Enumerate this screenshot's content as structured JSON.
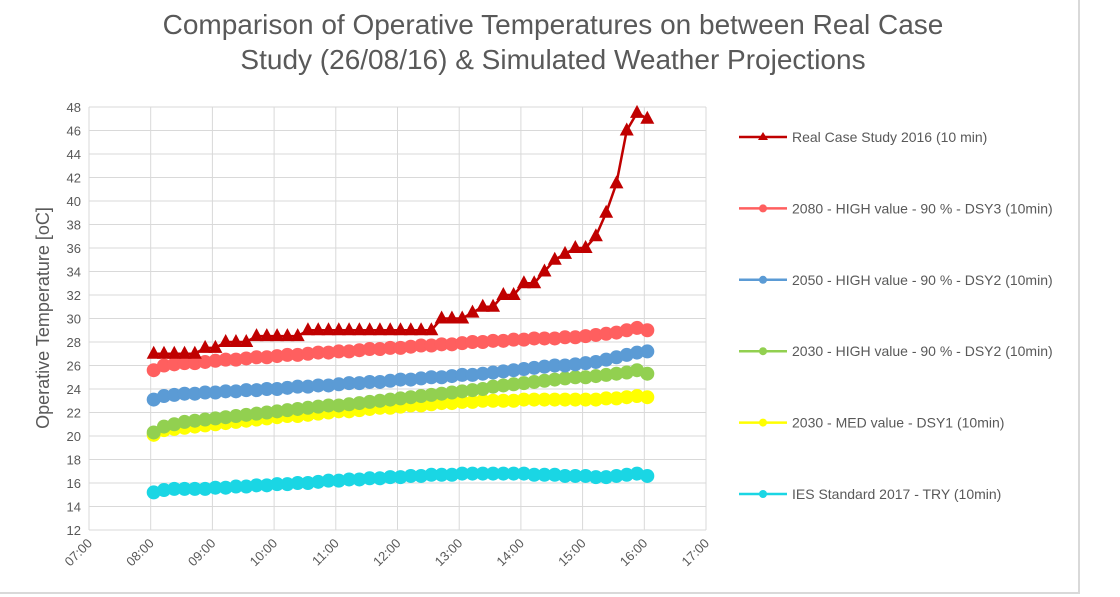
{
  "chart_data": {
    "type": "line",
    "title_lines": [
      "Comparison of Operative Temperatures on between Real Case",
      "Study (26/08/16) & Simulated Weather Projections"
    ],
    "xlabel": "",
    "ylabel": "Operative Temperature [oC]",
    "xlim": [
      "07:00",
      "17:00"
    ],
    "x_ticks": [
      "07:00",
      "08:00",
      "09:00",
      "10:00",
      "11:00",
      "12:00",
      "13:00",
      "14:00",
      "15:00",
      "16:00",
      "17:00"
    ],
    "ylim": [
      12,
      48
    ],
    "y_ticks": [
      12,
      14,
      16,
      18,
      20,
      22,
      24,
      26,
      28,
      30,
      32,
      34,
      36,
      38,
      40,
      42,
      44,
      46,
      48
    ],
    "grid": true,
    "legend_position": "right",
    "x": [
      "08:00",
      "08:10",
      "08:20",
      "08:30",
      "08:40",
      "08:50",
      "09:00",
      "09:10",
      "09:20",
      "09:30",
      "09:40",
      "09:50",
      "10:00",
      "10:10",
      "10:20",
      "10:30",
      "10:40",
      "10:50",
      "11:00",
      "11:10",
      "11:20",
      "11:30",
      "11:40",
      "11:50",
      "12:00",
      "12:10",
      "12:20",
      "12:30",
      "12:40",
      "12:50",
      "13:00",
      "13:10",
      "13:20",
      "13:30",
      "13:40",
      "13:50",
      "14:00",
      "14:10",
      "14:20",
      "14:30",
      "14:40",
      "14:50",
      "15:00",
      "15:10",
      "15:20",
      "15:30",
      "15:40",
      "15:50",
      "16:00"
    ],
    "series": [
      {
        "name": "Real Case Study 2016 (10 min)",
        "color": "#C00000",
        "marker": "triangle",
        "values": [
          27,
          27,
          27,
          27,
          27,
          27.5,
          27.5,
          28,
          28,
          28,
          28.5,
          28.5,
          28.5,
          28.5,
          28.5,
          29,
          29,
          29,
          29,
          29,
          29,
          29,
          29,
          29,
          29,
          29,
          29,
          29,
          30,
          30,
          30,
          30.5,
          31,
          31,
          32,
          32,
          33,
          33,
          34,
          35,
          35.5,
          36,
          36,
          37,
          39,
          41.5,
          46,
          47.5,
          47
        ]
      },
      {
        "name": "2080 - HIGH value - 90 % - DSY3 (10min)",
        "color": "#FF5F5F",
        "marker": "circle",
        "values": [
          25.6,
          26.0,
          26.1,
          26.2,
          26.2,
          26.3,
          26.4,
          26.5,
          26.5,
          26.6,
          26.7,
          26.7,
          26.8,
          26.9,
          26.9,
          27.0,
          27.1,
          27.1,
          27.2,
          27.2,
          27.3,
          27.4,
          27.4,
          27.5,
          27.5,
          27.6,
          27.7,
          27.7,
          27.8,
          27.8,
          27.9,
          28.0,
          28.0,
          28.1,
          28.1,
          28.2,
          28.2,
          28.3,
          28.3,
          28.3,
          28.4,
          28.4,
          28.5,
          28.6,
          28.7,
          28.8,
          29.0,
          29.2,
          29.0
        ]
      },
      {
        "name": "2050 - HIGH value - 90 % - DSY2 (10min)",
        "color": "#5B9BD5",
        "marker": "circle",
        "values": [
          23.1,
          23.4,
          23.5,
          23.6,
          23.6,
          23.7,
          23.7,
          23.8,
          23.8,
          23.9,
          23.9,
          24.0,
          24.0,
          24.1,
          24.2,
          24.2,
          24.3,
          24.3,
          24.4,
          24.5,
          24.5,
          24.6,
          24.6,
          24.7,
          24.8,
          24.8,
          24.9,
          25.0,
          25.0,
          25.1,
          25.2,
          25.2,
          25.3,
          25.4,
          25.5,
          25.6,
          25.7,
          25.8,
          25.9,
          26.0,
          26.0,
          26.1,
          26.2,
          26.3,
          26.5,
          26.7,
          26.9,
          27.1,
          27.2
        ]
      },
      {
        "name": "2030 - HIGH value - 90 % - DSY2 (10min)",
        "color": "#92D050",
        "marker": "circle",
        "values": [
          20.3,
          20.8,
          21.0,
          21.2,
          21.3,
          21.4,
          21.5,
          21.6,
          21.7,
          21.8,
          21.9,
          22.0,
          22.1,
          22.2,
          22.3,
          22.4,
          22.5,
          22.6,
          22.6,
          22.7,
          22.8,
          22.9,
          23.0,
          23.1,
          23.2,
          23.3,
          23.4,
          23.5,
          23.6,
          23.7,
          23.8,
          23.9,
          24.0,
          24.2,
          24.3,
          24.4,
          24.5,
          24.6,
          24.7,
          24.8,
          24.9,
          25.0,
          25.0,
          25.1,
          25.2,
          25.3,
          25.4,
          25.6,
          25.3
        ]
      },
      {
        "name": "2030 - MED value - DSY1 (10min)",
        "color": "#FFFF00",
        "marker": "circle",
        "values": [
          20.1,
          20.5,
          20.6,
          20.7,
          20.8,
          20.9,
          21.0,
          21.1,
          21.2,
          21.3,
          21.4,
          21.5,
          21.6,
          21.7,
          21.7,
          21.8,
          21.9,
          22.0,
          22.1,
          22.1,
          22.2,
          22.3,
          22.4,
          22.4,
          22.5,
          22.6,
          22.6,
          22.7,
          22.8,
          22.8,
          22.9,
          22.9,
          23.0,
          23.0,
          23.0,
          23.0,
          23.1,
          23.1,
          23.1,
          23.1,
          23.1,
          23.1,
          23.1,
          23.1,
          23.2,
          23.2,
          23.3,
          23.4,
          23.3
        ]
      },
      {
        "name": "IES Standard 2017 - TRY (10min)",
        "color": "#1AD6E4",
        "marker": "circle",
        "values": [
          15.2,
          15.4,
          15.5,
          15.5,
          15.5,
          15.5,
          15.6,
          15.6,
          15.7,
          15.7,
          15.8,
          15.8,
          15.9,
          15.9,
          16.0,
          16.0,
          16.1,
          16.2,
          16.2,
          16.3,
          16.3,
          16.4,
          16.4,
          16.5,
          16.5,
          16.6,
          16.6,
          16.7,
          16.7,
          16.7,
          16.8,
          16.8,
          16.8,
          16.8,
          16.8,
          16.8,
          16.8,
          16.7,
          16.7,
          16.7,
          16.6,
          16.6,
          16.6,
          16.5,
          16.5,
          16.6,
          16.7,
          16.8,
          16.6
        ]
      }
    ]
  }
}
